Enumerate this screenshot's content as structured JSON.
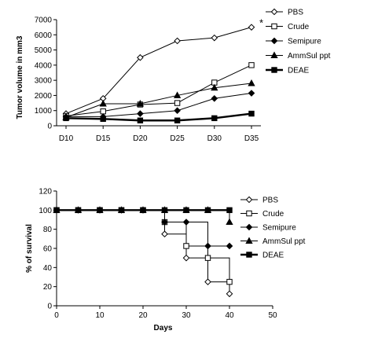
{
  "chart_data": [
    {
      "type": "line",
      "title": "",
      "xlabel": "",
      "ylabel": "Tumor volume in mm3",
      "categories": [
        "D10",
        "D15",
        "D20",
        "D25",
        "D30",
        "D35"
      ],
      "ylim": [
        0,
        7000
      ],
      "yticks": [
        "0",
        "1000",
        "2000",
        "3000",
        "4000",
        "5000",
        "6000",
        "7000"
      ],
      "annotation": "*",
      "legend_position": "right",
      "series": [
        {
          "name": "PBS",
          "marker": "open-diamond",
          "values": [
            800,
            1800,
            4500,
            5600,
            5800,
            6500
          ]
        },
        {
          "name": "Crude",
          "marker": "open-square",
          "values": [
            650,
            950,
            1400,
            1500,
            2850,
            4000
          ]
        },
        {
          "name": "Semipure",
          "marker": "filled-diamond",
          "values": [
            600,
            600,
            800,
            1000,
            1800,
            2150
          ]
        },
        {
          "name": "AmmSul ppt",
          "marker": "filled-triangle",
          "values": [
            550,
            1450,
            1450,
            2000,
            2500,
            2800
          ]
        },
        {
          "name": "DEAE",
          "marker": "filled-square",
          "values": [
            500,
            450,
            350,
            350,
            500,
            800
          ]
        }
      ]
    },
    {
      "type": "line",
      "subtype": "step",
      "title": "",
      "xlabel": "Days",
      "ylabel": "% of survival",
      "xlim": [
        0,
        50
      ],
      "xticks": [
        "0",
        "10",
        "20",
        "30",
        "40",
        "50"
      ],
      "ylim": [
        0,
        120
      ],
      "yticks": [
        "0",
        "20",
        "40",
        "60",
        "80",
        "100",
        "120"
      ],
      "legend_position": "right",
      "series": [
        {
          "name": "PBS",
          "marker": "open-diamond",
          "x": [
            0,
            5,
            10,
            15,
            20,
            25,
            30,
            35,
            40
          ],
          "y": [
            100,
            100,
            100,
            100,
            100,
            75,
            50,
            25,
            12.5
          ]
        },
        {
          "name": "Crude",
          "marker": "open-square",
          "x": [
            0,
            5,
            10,
            15,
            20,
            25,
            30,
            35,
            40
          ],
          "y": [
            100,
            100,
            100,
            100,
            100,
            87.5,
            62.5,
            50,
            25
          ]
        },
        {
          "name": "Semipure",
          "marker": "filled-diamond",
          "x": [
            0,
            5,
            10,
            15,
            20,
            25,
            30,
            35,
            40
          ],
          "y": [
            100,
            100,
            100,
            100,
            100,
            87.5,
            87.5,
            62.5,
            62.5
          ]
        },
        {
          "name": "AmmSul ppt",
          "marker": "filled-triangle",
          "x": [
            0,
            5,
            10,
            15,
            20,
            25,
            30,
            35,
            40
          ],
          "y": [
            100,
            100,
            100,
            100,
            100,
            100,
            100,
            100,
            87.5
          ]
        },
        {
          "name": "DEAE",
          "marker": "filled-square",
          "x": [
            0,
            5,
            10,
            15,
            20,
            25,
            30,
            35,
            40
          ],
          "y": [
            100,
            100,
            100,
            100,
            100,
            100,
            100,
            100,
            100
          ]
        }
      ]
    }
  ]
}
